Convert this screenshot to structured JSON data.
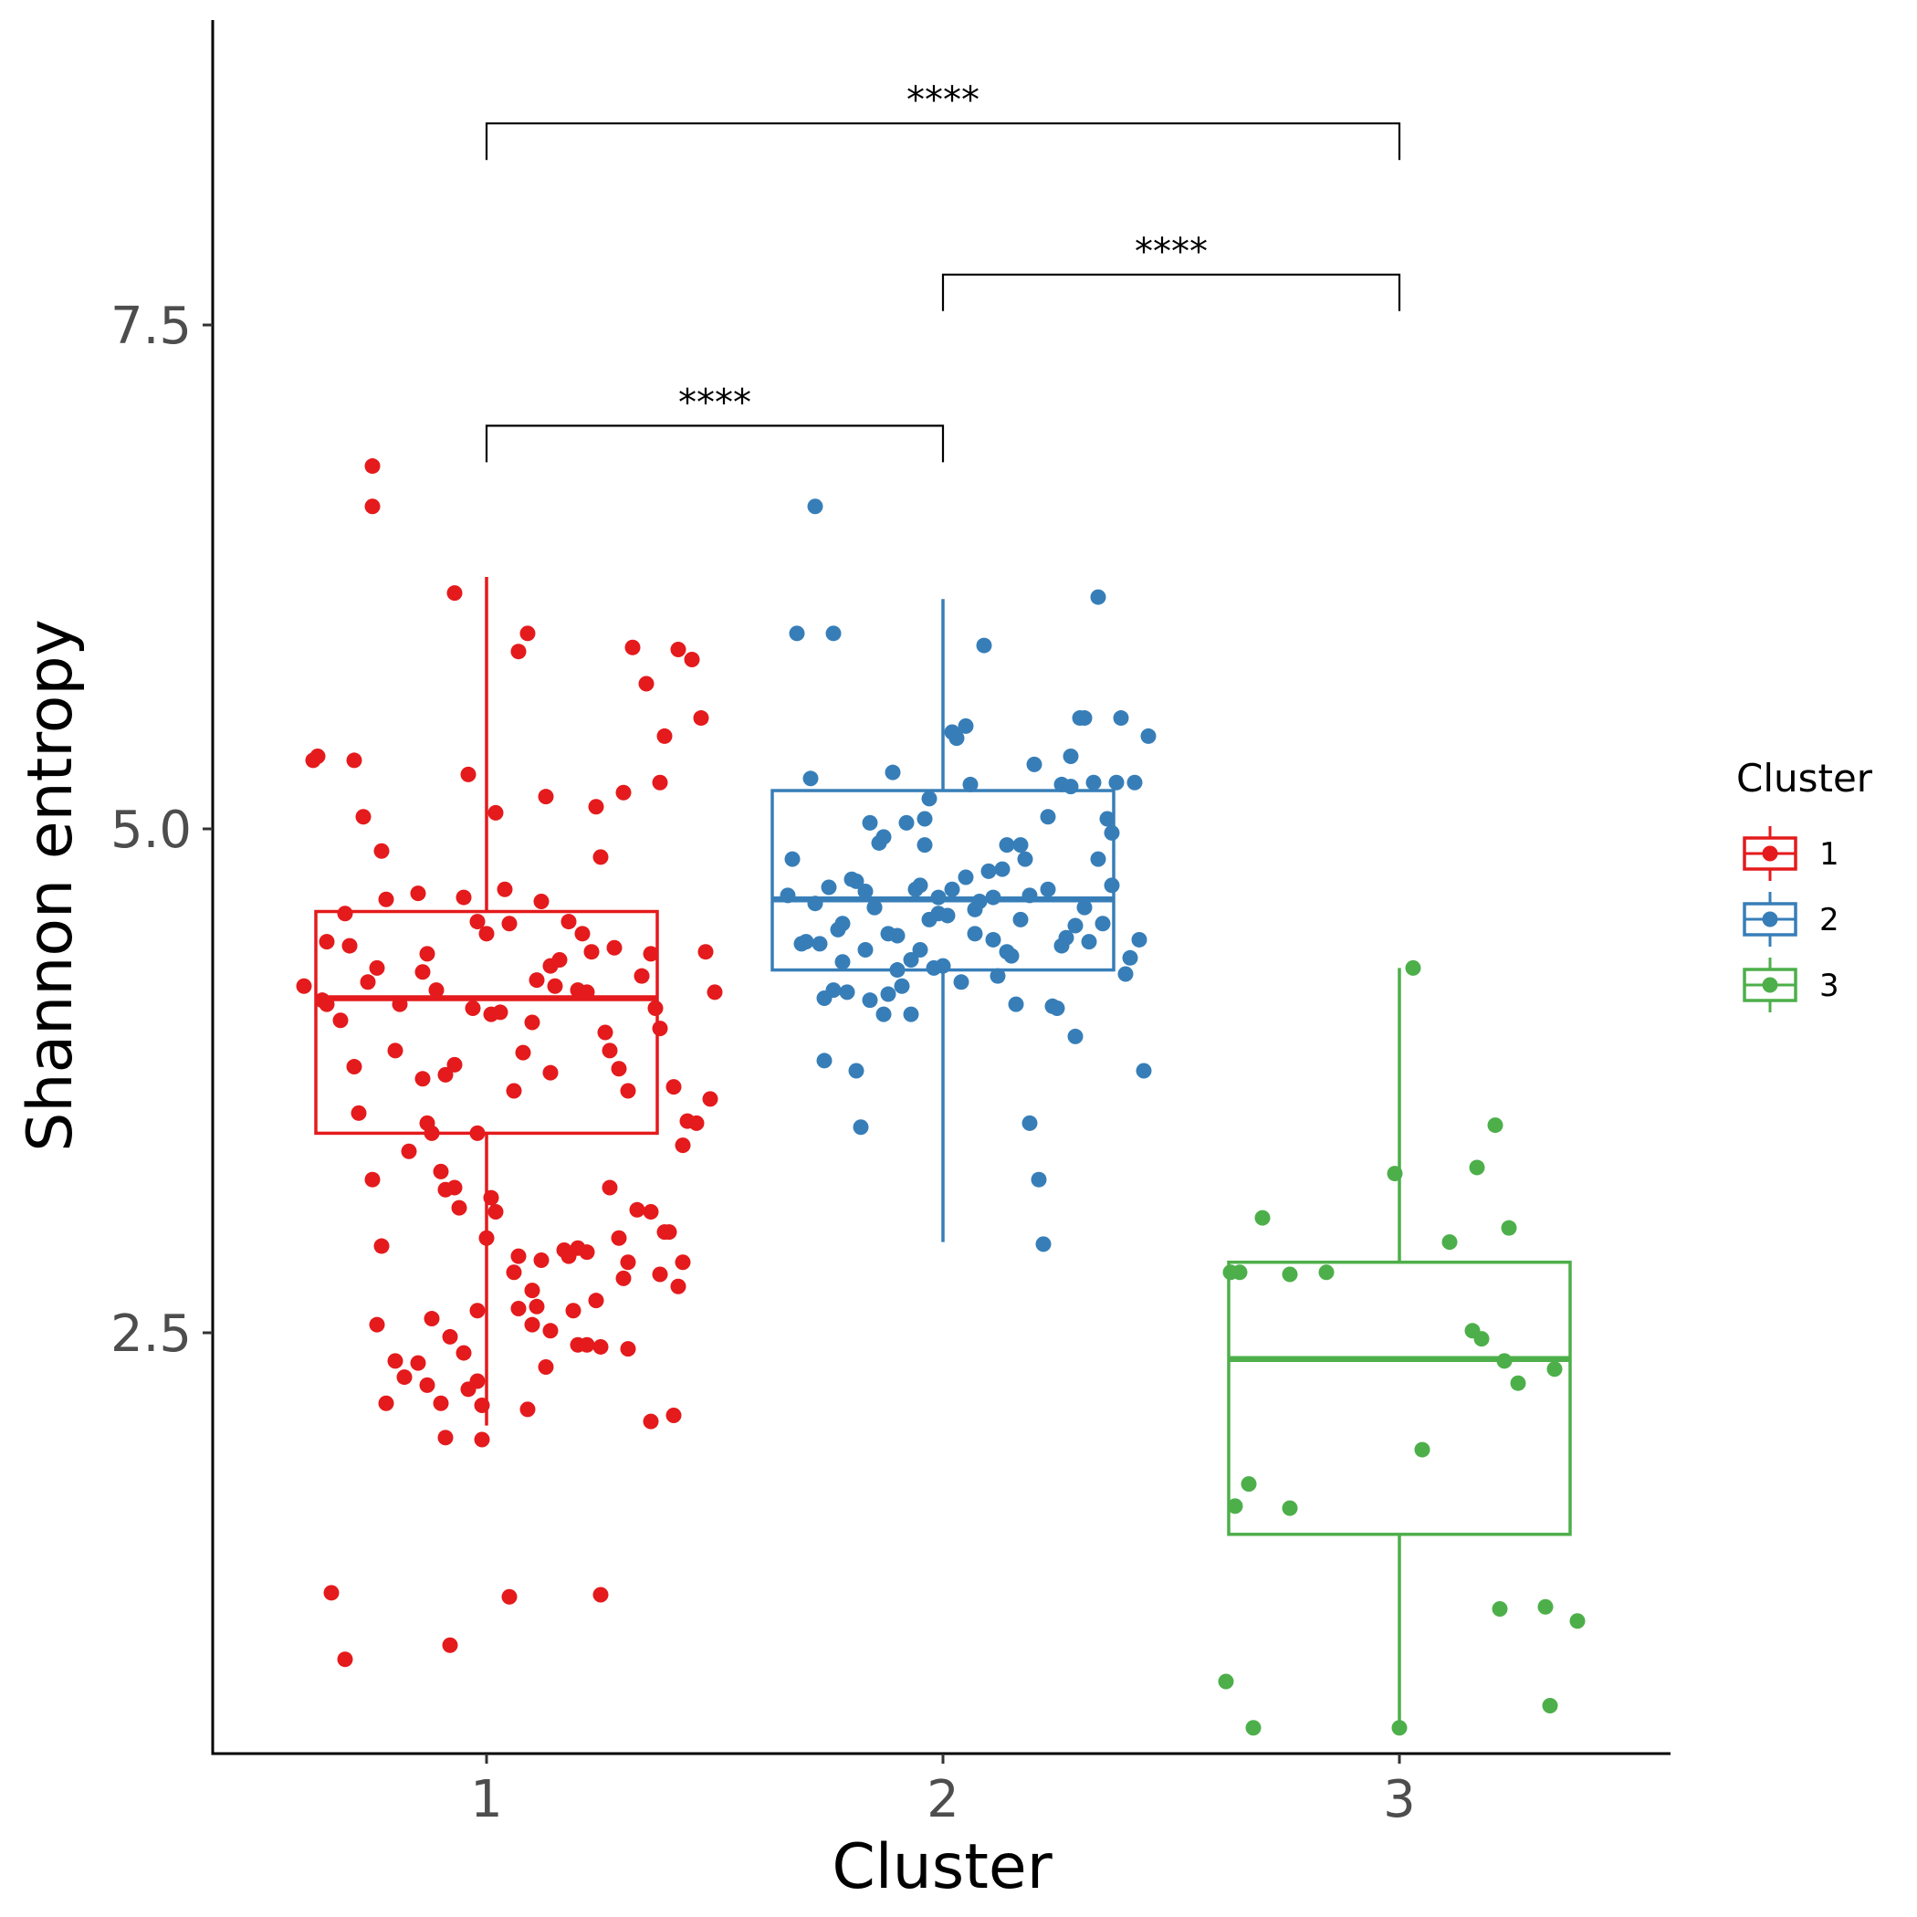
{
  "chart_data": {
    "type": "box",
    "xlabel": "Cluster",
    "ylabel": "Shannon entropy",
    "categories": [
      "1",
      "2",
      "3"
    ],
    "y_ticks": [
      2.5,
      5.0,
      7.5
    ],
    "y_tick_labels": [
      "2.5",
      "5.0",
      "7.5"
    ],
    "x_tick_labels": [
      "1",
      "2",
      "3"
    ],
    "ylim": [
      0.4,
      8.95
    ],
    "grid": false,
    "legend": {
      "title": "Cluster",
      "position": "right",
      "entries": [
        "1",
        "2",
        "3"
      ]
    },
    "colors": {
      "1": "#E41A1C",
      "2": "#377EB8",
      "3": "#4DAF4A"
    },
    "series": [
      {
        "name": "1",
        "box": {
          "q1": 3.49,
          "median": 4.16,
          "q3": 4.59,
          "whisker_low": 2.04,
          "whisker_high": 6.25
        },
        "points": [
          [
            0.6,
            4.22
          ],
          [
            0.62,
            5.34
          ],
          [
            0.63,
            5.36
          ],
          [
            0.65,
            4.44
          ],
          [
            0.64,
            4.15
          ],
          [
            0.65,
            4.13
          ],
          [
            0.68,
            4.05
          ],
          [
            0.69,
            4.58
          ],
          [
            0.71,
            5.34
          ],
          [
            0.7,
            4.42
          ],
          [
            0.71,
            3.82
          ],
          [
            0.72,
            3.59
          ],
          [
            0.75,
            3.26
          ],
          [
            0.73,
            5.06
          ],
          [
            0.74,
            4.24
          ],
          [
            0.76,
            4.31
          ],
          [
            0.77,
            4.89
          ],
          [
            0.78,
            4.65
          ],
          [
            0.77,
            2.93
          ],
          [
            0.8,
            3.9
          ],
          [
            0.81,
            4.13
          ],
          [
            0.83,
            3.4
          ],
          [
            0.85,
            4.68
          ],
          [
            0.86,
            4.29
          ],
          [
            0.87,
            4.38
          ],
          [
            0.86,
            3.76
          ],
          [
            0.87,
            3.54
          ],
          [
            0.88,
            3.49
          ],
          [
            0.89,
            4.2
          ],
          [
            0.9,
            3.3
          ],
          [
            0.91,
            3.78
          ],
          [
            0.93,
            3.83
          ],
          [
            0.94,
            3.12
          ],
          [
            0.95,
            4.66
          ],
          [
            0.96,
            5.27
          ],
          [
            0.97,
            4.11
          ],
          [
            0.98,
            4.54
          ],
          [
            0.98,
            3.49
          ],
          [
            1.0,
            4.48
          ],
          [
            1.01,
            4.08
          ],
          [
            1.02,
            5.08
          ],
          [
            1.03,
            4.09
          ],
          [
            1.04,
            4.7
          ],
          [
            1.05,
            4.53
          ],
          [
            1.06,
            3.7
          ],
          [
            1.07,
            5.88
          ],
          [
            1.08,
            3.89
          ],
          [
            1.09,
            5.97
          ],
          [
            1.1,
            4.04
          ],
          [
            1.11,
            4.25
          ],
          [
            1.12,
            4.64
          ],
          [
            1.13,
            5.16
          ],
          [
            1.14,
            3.79
          ],
          [
            1.14,
            4.32
          ],
          [
            1.15,
            4.22
          ],
          [
            1.16,
            4.35
          ],
          [
            1.18,
            4.54
          ],
          [
            1.2,
            4.2
          ],
          [
            1.21,
            4.48
          ],
          [
            1.22,
            4.19
          ],
          [
            1.23,
            4.39
          ],
          [
            1.24,
            5.11
          ],
          [
            1.25,
            4.86
          ],
          [
            1.26,
            3.99
          ],
          [
            1.27,
            3.9
          ],
          [
            1.28,
            4.41
          ],
          [
            1.29,
            3.81
          ],
          [
            1.3,
            5.18
          ],
          [
            1.31,
            3.7
          ],
          [
            1.32,
            5.9
          ],
          [
            1.33,
            3.11
          ],
          [
            1.34,
            4.27
          ],
          [
            1.35,
            5.72
          ],
          [
            1.36,
            4.38
          ],
          [
            1.37,
            4.11
          ],
          [
            1.38,
            5.23
          ],
          [
            1.39,
            5.46
          ],
          [
            1.4,
            3.0
          ],
          [
            1.41,
            3.72
          ],
          [
            1.42,
            5.89
          ],
          [
            1.43,
            3.43
          ],
          [
            1.44,
            3.55
          ],
          [
            1.45,
            5.84
          ],
          [
            1.46,
            3.54
          ],
          [
            1.47,
            5.55
          ],
          [
            1.48,
            4.39
          ],
          [
            1.49,
            3.66
          ],
          [
            1.5,
            4.19
          ],
          [
            1.38,
            4.01
          ],
          [
            1.39,
            3.0
          ],
          [
            1.29,
            2.97
          ],
          [
            1.3,
            2.77
          ],
          [
            1.25,
            2.43
          ],
          [
            1.24,
            2.66
          ],
          [
            1.22,
            2.44
          ],
          [
            1.2,
            2.44
          ],
          [
            1.19,
            2.61
          ],
          [
            1.14,
            2.51
          ],
          [
            1.13,
            2.33
          ],
          [
            1.18,
            2.88
          ],
          [
            1.17,
            2.91
          ],
          [
            1.06,
            2.8
          ],
          [
            1.07,
            2.62
          ],
          [
            0.95,
            2.4
          ],
          [
            0.96,
            2.22
          ],
          [
            0.98,
            2.26
          ],
          [
            0.99,
            2.14
          ],
          [
            0.9,
            2.15
          ],
          [
            0.87,
            2.24
          ],
          [
            0.85,
            2.35
          ],
          [
            0.82,
            2.28
          ],
          [
            0.8,
            2.36
          ],
          [
            0.78,
            2.15
          ],
          [
            0.75,
            6.8
          ],
          [
            0.75,
            6.6
          ],
          [
            0.93,
            6.17
          ],
          [
            0.66,
            1.21
          ],
          [
            0.69,
            0.88
          ],
          [
            0.92,
            0.95
          ],
          [
            1.05,
            1.19
          ],
          [
            1.25,
            1.2
          ],
          [
            0.91,
            1.98
          ],
          [
            0.99,
            1.97
          ],
          [
            1.09,
            2.12
          ],
          [
            1.31,
            2.42
          ],
          [
            1.36,
            2.06
          ],
          [
            1.38,
            2.79
          ],
          [
            1.41,
            2.09
          ],
          [
            1.42,
            2.73
          ],
          [
            1.43,
            2.85
          ],
          [
            0.76,
            2.54
          ],
          [
            0.88,
            2.57
          ],
          [
            0.98,
            2.61
          ],
          [
            1.0,
            2.97
          ],
          [
            1.1,
            2.54
          ],
          [
            1.11,
            2.63
          ],
          [
            1.12,
            2.86
          ],
          [
            0.92,
            2.48
          ],
          [
            0.91,
            3.21
          ],
          [
            0.93,
            3.22
          ],
          [
            1.01,
            3.17
          ],
          [
            1.02,
            3.1
          ],
          [
            1.07,
            2.88
          ],
          [
            1.1,
            2.71
          ],
          [
            1.2,
            2.92
          ],
          [
            1.22,
            2.9
          ],
          [
            1.27,
            3.22
          ],
          [
            1.31,
            2.85
          ],
          [
            1.36,
            3.1
          ]
        ]
      },
      {
        "name": "2",
        "box": {
          "q1": 4.3,
          "median": 4.65,
          "q3": 5.19,
          "whisker_low": 2.95,
          "whisker_high": 6.14
        },
        "points": [
          [
            1.66,
            4.67
          ],
          [
            1.67,
            4.85
          ],
          [
            1.68,
            5.97
          ],
          [
            1.69,
            4.43
          ],
          [
            1.7,
            4.44
          ],
          [
            1.71,
            5.25
          ],
          [
            1.72,
            6.6
          ],
          [
            1.73,
            4.43
          ],
          [
            1.74,
            3.85
          ],
          [
            1.74,
            4.16
          ],
          [
            1.75,
            4.71
          ],
          [
            1.76,
            5.97
          ],
          [
            1.77,
            4.5
          ],
          [
            1.78,
            4.53
          ],
          [
            1.79,
            4.19
          ],
          [
            1.8,
            4.75
          ],
          [
            1.81,
            3.8
          ],
          [
            1.82,
            3.52
          ],
          [
            1.83,
            4.4
          ],
          [
            1.84,
            4.15
          ],
          [
            1.84,
            5.03
          ],
          [
            1.85,
            4.61
          ],
          [
            1.86,
            4.93
          ],
          [
            1.87,
            4.08
          ],
          [
            1.88,
            4.48
          ],
          [
            1.89,
            5.28
          ],
          [
            1.9,
            4.3
          ],
          [
            1.91,
            4.22
          ],
          [
            1.92,
            5.03
          ],
          [
            1.93,
            4.08
          ],
          [
            1.94,
            4.7
          ],
          [
            1.95,
            4.72
          ],
          [
            1.96,
            5.05
          ],
          [
            1.97,
            5.15
          ],
          [
            1.98,
            4.31
          ],
          [
            1.99,
            4.66
          ],
          [
            2.0,
            4.32
          ],
          [
            2.01,
            4.57
          ],
          [
            2.02,
            5.48
          ],
          [
            2.03,
            5.45
          ],
          [
            2.04,
            4.24
          ],
          [
            2.05,
            5.51
          ],
          [
            2.06,
            5.22
          ],
          [
            2.07,
            4.6
          ],
          [
            2.08,
            4.64
          ],
          [
            2.09,
            5.91
          ],
          [
            2.1,
            4.79
          ],
          [
            2.12,
            4.27
          ],
          [
            2.13,
            4.8
          ],
          [
            2.14,
            4.92
          ],
          [
            2.15,
            4.37
          ],
          [
            2.16,
            4.13
          ],
          [
            2.17,
            4.92
          ],
          [
            2.18,
            4.85
          ],
          [
            2.19,
            3.54
          ],
          [
            2.2,
            5.32
          ],
          [
            2.21,
            3.26
          ],
          [
            2.22,
            2.94
          ],
          [
            2.23,
            5.06
          ],
          [
            2.24,
            4.12
          ],
          [
            2.25,
            4.11
          ],
          [
            2.26,
            5.22
          ],
          [
            2.27,
            4.46
          ],
          [
            2.28,
            5.21
          ],
          [
            2.29,
            3.97
          ],
          [
            2.3,
            5.55
          ],
          [
            2.31,
            5.55
          ],
          [
            2.32,
            4.44
          ],
          [
            2.33,
            5.23
          ],
          [
            2.34,
            6.15
          ],
          [
            2.35,
            4.53
          ],
          [
            2.36,
            5.05
          ],
          [
            2.37,
            4.98
          ],
          [
            2.38,
            5.23
          ],
          [
            2.39,
            5.55
          ],
          [
            2.4,
            4.28
          ],
          [
            2.41,
            4.36
          ],
          [
            2.42,
            5.23
          ],
          [
            2.43,
            4.45
          ],
          [
            2.44,
            3.8
          ],
          [
            2.45,
            5.46
          ],
          [
            2.28,
            5.36
          ],
          [
            2.29,
            4.52
          ],
          [
            2.11,
            4.66
          ],
          [
            1.93,
            4.35
          ],
          [
            1.9,
            4.47
          ],
          [
            1.88,
            4.18
          ],
          [
            1.85,
            4.61
          ],
          [
            1.83,
            4.69
          ],
          [
            1.81,
            4.74
          ],
          [
            1.72,
            4.63
          ],
          [
            2.02,
            4.7
          ],
          [
            2.05,
            4.76
          ],
          [
            2.07,
            4.48
          ],
          [
            2.11,
            4.45
          ],
          [
            2.14,
            4.39
          ],
          [
            2.17,
            4.55
          ],
          [
            2.19,
            4.67
          ],
          [
            2.23,
            4.7
          ],
          [
            2.26,
            4.42
          ],
          [
            2.31,
            4.61
          ],
          [
            2.34,
            4.85
          ],
          [
            2.37,
            4.72
          ],
          [
            1.95,
            4.4
          ],
          [
            1.97,
            4.55
          ],
          [
            1.99,
            4.58
          ],
          [
            1.76,
            4.2
          ],
          [
            1.78,
            4.34
          ],
          [
            1.87,
            4.96
          ],
          [
            1.96,
            4.92
          ]
        ]
      },
      {
        "name": "3",
        "box": {
          "q1": 1.5,
          "median": 2.37,
          "q3": 2.85,
          "whisker_low": 0.54,
          "whisker_high": 4.31
        },
        "points": [
          [
            2.62,
            0.77
          ],
          [
            2.63,
            2.8
          ],
          [
            2.64,
            1.64
          ],
          [
            2.65,
            2.8
          ],
          [
            2.67,
            1.75
          ],
          [
            2.68,
            0.54
          ],
          [
            2.7,
            3.07
          ],
          [
            2.76,
            1.63
          ],
          [
            2.76,
            2.79
          ],
          [
            2.84,
            2.8
          ],
          [
            2.99,
            3.29
          ],
          [
            3.0,
            0.54
          ],
          [
            3.03,
            4.31
          ],
          [
            3.05,
            1.92
          ],
          [
            3.11,
            2.95
          ],
          [
            3.16,
            2.51
          ],
          [
            3.17,
            3.32
          ],
          [
            3.18,
            2.47
          ],
          [
            3.21,
            3.53
          ],
          [
            3.22,
            1.13
          ],
          [
            3.23,
            2.36
          ],
          [
            3.24,
            3.02
          ],
          [
            3.26,
            2.25
          ],
          [
            3.32,
            1.14
          ],
          [
            3.33,
            0.65
          ],
          [
            3.34,
            2.32
          ],
          [
            3.39,
            1.07
          ]
        ]
      }
    ],
    "annotations": [
      {
        "from": "1",
        "to": "2",
        "label": "****",
        "y": 7.0
      },
      {
        "from": "2",
        "to": "3",
        "label": "****",
        "y": 7.75
      },
      {
        "from": "1",
        "to": "3",
        "label": "****",
        "y": 8.5
      }
    ]
  }
}
